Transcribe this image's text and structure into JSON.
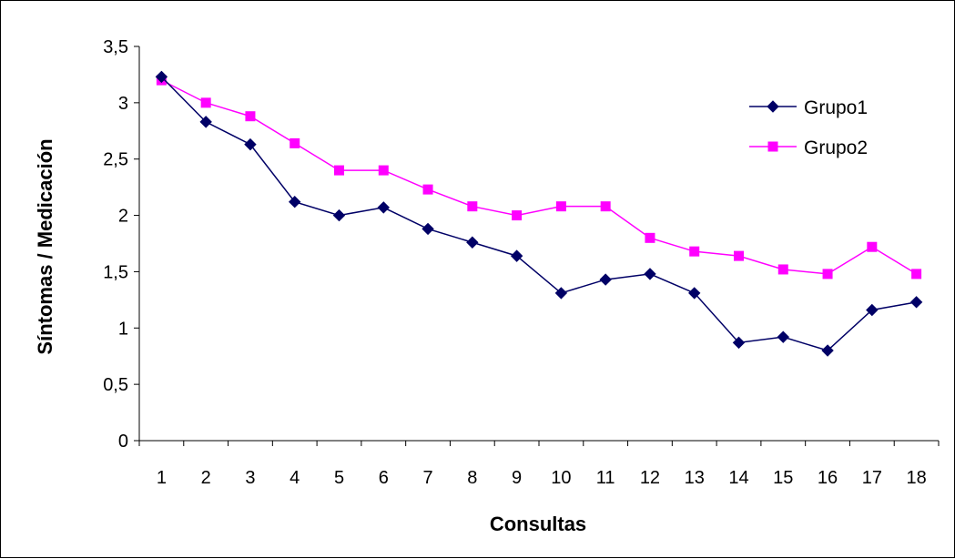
{
  "chart_data": {
    "type": "line",
    "xlabel": "Consultas",
    "ylabel": "Síntomas / Medicación",
    "categories": [
      "1",
      "2",
      "3",
      "4",
      "5",
      "6",
      "7",
      "8",
      "9",
      "10",
      "11",
      "12",
      "13",
      "14",
      "15",
      "16",
      "17",
      "18"
    ],
    "ylim": [
      0,
      3.5
    ],
    "y_ticks": [
      0,
      0.5,
      1,
      1.5,
      2,
      2.5,
      3,
      3.5
    ],
    "y_tick_labels": [
      "0",
      "0,5",
      "1",
      "1,5",
      "2",
      "2,5",
      "3",
      "3,5"
    ],
    "grid": false,
    "legend_position": "top-right",
    "series": [
      {
        "name": "Grupo1",
        "color": "#000066",
        "marker": "diamond",
        "values": [
          3.23,
          2.83,
          2.63,
          2.12,
          2.0,
          2.07,
          1.88,
          1.76,
          1.64,
          1.31,
          1.43,
          1.48,
          1.31,
          0.87,
          0.92,
          0.8,
          1.16,
          1.23
        ]
      },
      {
        "name": "Grupo2",
        "color": "#ff00ff",
        "marker": "square",
        "values": [
          3.2,
          3.0,
          2.88,
          2.64,
          2.4,
          2.4,
          2.23,
          2.08,
          2.0,
          2.08,
          2.08,
          1.8,
          1.68,
          1.64,
          1.52,
          1.48,
          1.72,
          1.48
        ]
      }
    ]
  }
}
